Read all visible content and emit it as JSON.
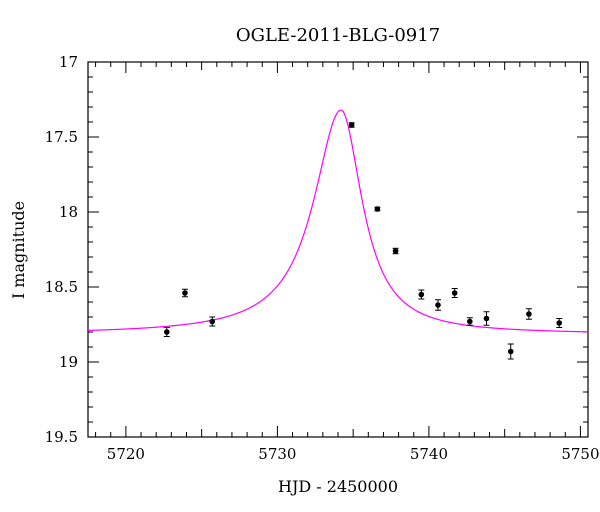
{
  "chart_data": {
    "type": "scatter",
    "title": "OGLE-2011-BLG-0917",
    "xlabel": "HJD - 2450000",
    "ylabel": "I magnitude",
    "xlim": [
      5717.5,
      5750.5
    ],
    "ylim": [
      17.0,
      19.5
    ],
    "y_inverted": true,
    "x_ticks": [
      "5720",
      "5730",
      "5740",
      "5750"
    ],
    "y_ticks": [
      "17",
      "17.5",
      "18",
      "18.5",
      "19",
      "19.5"
    ],
    "grid": false,
    "legend": "none",
    "series": [
      {
        "kind": "points_with_errorbars",
        "color": "#000000",
        "x": [
          5722.7,
          5723.9,
          5725.7,
          5734.9,
          5736.6,
          5737.8,
          5739.5,
          5740.6,
          5741.7,
          5742.7,
          5743.8,
          5745.4,
          5746.6,
          5748.6
        ],
        "y": [
          18.8,
          18.54,
          18.73,
          17.42,
          17.98,
          18.26,
          18.55,
          18.62,
          18.54,
          18.73,
          18.71,
          18.93,
          18.68,
          18.74
        ],
        "err": [
          0.03,
          0.025,
          0.03,
          0.015,
          0.012,
          0.018,
          0.03,
          0.035,
          0.03,
          0.025,
          0.045,
          0.05,
          0.035,
          0.03
        ]
      },
      {
        "kind": "model_curve",
        "color": "#ff00ff",
        "peak_x": 5734.2,
        "peak_y": 17.32,
        "baseline_y": 18.815,
        "half_width_left": 2.2,
        "half_width_right": 1.7
      }
    ]
  }
}
